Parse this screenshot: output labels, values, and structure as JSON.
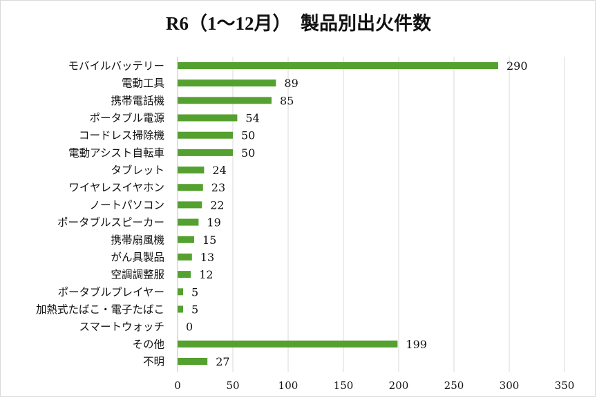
{
  "chart_data": {
    "type": "bar",
    "orientation": "horizontal",
    "title": "R6（1～12月）　製品別出火件数",
    "categories": [
      "モバイルバッテリー",
      "電動工具",
      "携帯電話機",
      "ポータブル電源",
      "コードレス掃除機",
      "電動アシスト自転車",
      "タブレット",
      "ワイヤレスイヤホン",
      "ノートパソコン",
      "ポータブルスピーカー",
      "携帯扇風機",
      "がん具製品",
      "空調調整服",
      "ポータブルプレイヤー",
      "加熱式たばこ・電子たばこ",
      "スマートウォッチ",
      "その他",
      "不明"
    ],
    "values": [
      290,
      89,
      85,
      54,
      50,
      50,
      24,
      23,
      22,
      19,
      15,
      13,
      12,
      5,
      5,
      0,
      199,
      27
    ],
    "xlim": [
      0,
      350
    ],
    "xticks": [
      0,
      50,
      100,
      150,
      200,
      250,
      300,
      350
    ],
    "xlabel": "",
    "ylabel": "",
    "grid": "vertical",
    "legend": "none",
    "data_labels": true,
    "bar_color": "#54a12f"
  }
}
